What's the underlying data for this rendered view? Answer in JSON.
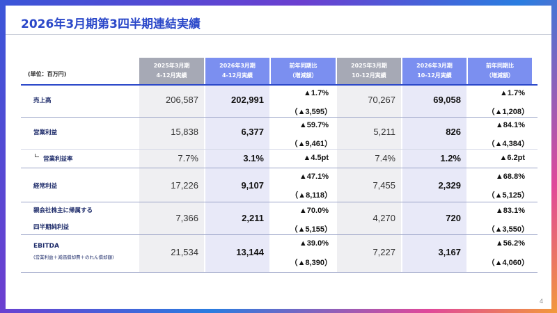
{
  "title": "2026年3月期第3四半期連結実績",
  "unit_label": "(単位：百万円)",
  "page_number": "4",
  "headers": [
    {
      "l1": "2025年3月期",
      "l2": "4-12月実績"
    },
    {
      "l1": "2026年3月期",
      "l2": "4-12月実績"
    },
    {
      "l1": "前年同期比",
      "l2": "（増減額）"
    },
    {
      "l1": "2025年3月期",
      "l2": "10-12月実績"
    },
    {
      "l1": "2026年3月期",
      "l2": "10-12月実績"
    },
    {
      "l1": "前年同期比",
      "l2": "（増減額）"
    }
  ],
  "rows": [
    {
      "label": "売上高",
      "v1": "206,587",
      "v2": "202,991",
      "c1a": "▲1.7%",
      "c1b": "（▲3,595）",
      "v3": "70,267",
      "v4": "69,058",
      "c2a": "▲1.7%",
      "c2b": "（▲1,208）"
    },
    {
      "label": "営業利益",
      "v1": "15,838",
      "v2": "6,377",
      "c1a": "▲59.7%",
      "c1b": "（▲9,461）",
      "v3": "5,211",
      "v4": "826",
      "c2a": "▲84.1%",
      "c2b": "（▲4,384）"
    },
    {
      "label": "営業利益率",
      "v1": "7.7%",
      "v2": "3.1%",
      "c1a": "▲4.5pt",
      "v3": "7.4%",
      "v4": "1.2%",
      "c2a": "▲6.2pt"
    },
    {
      "label": "経常利益",
      "v1": "17,226",
      "v2": "9,107",
      "c1a": "▲47.1%",
      "c1b": "（▲8,118）",
      "v3": "7,455",
      "v4": "2,329",
      "c2a": "▲68.8%",
      "c2b": "（▲5,125）"
    },
    {
      "label1": "親会社株主に帰属する",
      "label2": "四半期純利益",
      "v1": "7,366",
      "v2": "2,211",
      "c1a": "▲70.0%",
      "c1b": "（▲5,155）",
      "v3": "4,270",
      "v4": "720",
      "c2a": "▲83.1%",
      "c2b": "（▲3,550）"
    },
    {
      "label": "EBITDA",
      "sub": "(営業利益＋減価償却費＋のれん償却額)",
      "v1": "21,534",
      "v2": "13,144",
      "c1a": "▲39.0%",
      "c1b": "（▲8,390）",
      "v3": "7,227",
      "v4": "3,167",
      "c2a": "▲56.2%",
      "c2b": "（▲4,060）"
    }
  ]
}
